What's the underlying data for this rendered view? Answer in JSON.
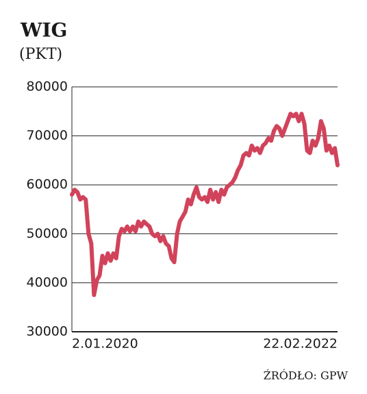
{
  "chart_data": {
    "type": "line",
    "title": "WIG",
    "subtitle": "(PKT)",
    "source": "ŹRÓDŁO: GPW",
    "categories": [
      "2.01.2020",
      null,
      null,
      null,
      null,
      null,
      null,
      null,
      null,
      null,
      null,
      null,
      null,
      null,
      null,
      null,
      null,
      null,
      null,
      null,
      null,
      null,
      null,
      null,
      null,
      null,
      null,
      null,
      null,
      null,
      null,
      null,
      null,
      null,
      null,
      null,
      null,
      null,
      null,
      null,
      null,
      null,
      null,
      null,
      null,
      null,
      null,
      null,
      null,
      null,
      null,
      null,
      null,
      null,
      null,
      null,
      null,
      null,
      null,
      null,
      null,
      null,
      null,
      null,
      null,
      null,
      null,
      null,
      null,
      null,
      null,
      null,
      null,
      null,
      null,
      null,
      null,
      null,
      null,
      null,
      null,
      null,
      null,
      null,
      null,
      null,
      null,
      null,
      null,
      null,
      null,
      null,
      null,
      null,
      null,
      null,
      "22.02.2022"
    ],
    "values": [
      58000,
      59000,
      58500,
      57000,
      57500,
      57000,
      50000,
      48000,
      37500,
      40500,
      41500,
      45500,
      44000,
      46000,
      44500,
      46000,
      45000,
      49500,
      51000,
      50500,
      51500,
      50500,
      51500,
      50500,
      52500,
      51500,
      52500,
      52000,
      51500,
      50000,
      49500,
      50000,
      48500,
      49500,
      48000,
      47500,
      45000,
      44200,
      50000,
      52500,
      53500,
      54500,
      57000,
      56000,
      58000,
      59500,
      57500,
      57000,
      57500,
      56500,
      59000,
      57000,
      58500,
      56500,
      59000,
      58000,
      59500,
      60000,
      60500,
      61500,
      63000,
      64000,
      66000,
      66500,
      66000,
      68000,
      67000,
      67500,
      66500,
      68000,
      68500,
      69500,
      69000,
      71000,
      72000,
      71500,
      70000,
      71500,
      73000,
      74500,
      74000,
      74500,
      73000,
      74500,
      72500,
      67000,
      66500,
      69000,
      68000,
      69500,
      73000,
      71500,
      67000,
      68000,
      66500,
      67500,
      64000
    ],
    "color": "#d1435b",
    "ylim": [
      30000,
      80000
    ],
    "yticks": [
      30000,
      40000,
      50000,
      60000,
      70000,
      80000
    ],
    "grid": true
  }
}
